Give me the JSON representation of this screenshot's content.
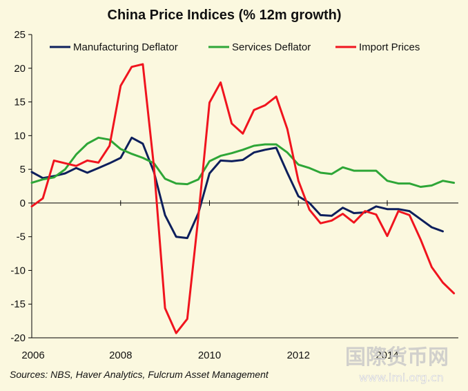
{
  "chart_data": {
    "type": "line",
    "title": "China Price Indices (% 12m growth)",
    "xlabel": "",
    "ylabel": "",
    "xlim": [
      2006,
      2015.6
    ],
    "ylim": [
      -20,
      25
    ],
    "y_ticks": [
      25,
      20,
      15,
      10,
      5,
      0,
      -5,
      -10,
      -15,
      -20
    ],
    "x_tick_labels": [
      "2006",
      "2008",
      "2010",
      "2012",
      "2014"
    ],
    "grid": false,
    "legend_position": "top",
    "series": [
      {
        "name": "Manufacturing Deflator",
        "color": "#0D1F5C",
        "x": [
          2006.0,
          2006.25,
          2006.5,
          2006.75,
          2007.0,
          2007.25,
          2007.5,
          2007.75,
          2008.0,
          2008.25,
          2008.5,
          2008.75,
          2009.0,
          2009.25,
          2009.5,
          2009.75,
          2010.0,
          2010.25,
          2010.5,
          2010.75,
          2011.0,
          2011.25,
          2011.5,
          2011.75,
          2012.0,
          2012.25,
          2012.5,
          2012.75,
          2013.0,
          2013.25,
          2013.5,
          2013.75,
          2014.0,
          2014.25,
          2014.5,
          2014.75,
          2015.0,
          2015.25
        ],
        "y": [
          4.6,
          3.7,
          4.0,
          4.4,
          5.2,
          4.5,
          5.2,
          5.9,
          6.7,
          9.7,
          8.8,
          4.6,
          -1.8,
          -5.0,
          -5.2,
          -1.5,
          4.4,
          6.3,
          6.2,
          6.4,
          7.5,
          7.9,
          8.2,
          4.5,
          1.0,
          0.0,
          -1.8,
          -1.9,
          -0.7,
          -1.5,
          -1.4,
          -0.5,
          -0.9,
          -0.9,
          -1.2,
          -2.4,
          -3.6,
          -4.2
        ]
      },
      {
        "name": "Services Deflator",
        "color": "#2EA637",
        "x": [
          2006.0,
          2006.25,
          2006.5,
          2006.75,
          2007.0,
          2007.25,
          2007.5,
          2007.75,
          2008.0,
          2008.25,
          2008.5,
          2008.75,
          2009.0,
          2009.25,
          2009.5,
          2009.75,
          2010.0,
          2010.25,
          2010.5,
          2010.75,
          2011.0,
          2011.25,
          2011.5,
          2011.75,
          2012.0,
          2012.25,
          2012.5,
          2012.75,
          2013.0,
          2013.25,
          2013.5,
          2013.75,
          2014.0,
          2014.25,
          2014.5,
          2014.75,
          2015.0,
          2015.25,
          2015.5
        ],
        "y": [
          3.0,
          3.5,
          3.8,
          5.0,
          7.2,
          8.8,
          9.7,
          9.4,
          8.0,
          7.3,
          6.7,
          5.9,
          3.6,
          2.9,
          2.8,
          3.5,
          6.2,
          7.0,
          7.4,
          7.9,
          8.5,
          8.7,
          8.7,
          7.5,
          5.7,
          5.2,
          4.5,
          4.3,
          5.3,
          4.8,
          4.8,
          4.8,
          3.3,
          2.9,
          2.9,
          2.4,
          2.6,
          3.3,
          3.0
        ]
      },
      {
        "name": "Import Prices",
        "color": "#F0141E",
        "x": [
          2006.0,
          2006.25,
          2006.5,
          2006.75,
          2007.0,
          2007.25,
          2007.5,
          2007.75,
          2008.0,
          2008.25,
          2008.5,
          2008.75,
          2009.0,
          2009.25,
          2009.5,
          2009.75,
          2010.0,
          2010.25,
          2010.5,
          2010.75,
          2011.0,
          2011.25,
          2011.5,
          2011.75,
          2012.0,
          2012.25,
          2012.5,
          2012.75,
          2013.0,
          2013.25,
          2013.5,
          2013.75,
          2014.0,
          2014.25,
          2014.5,
          2014.75,
          2015.0,
          2015.25,
          2015.5
        ],
        "y": [
          -0.5,
          0.7,
          6.3,
          5.9,
          5.5,
          6.3,
          6.0,
          8.5,
          17.4,
          20.2,
          20.6,
          5.4,
          -15.6,
          -19.3,
          -17.2,
          -2.0,
          14.9,
          17.9,
          11.8,
          10.3,
          13.8,
          14.5,
          15.8,
          11.0,
          3.3,
          -1.0,
          -3.0,
          -2.6,
          -1.6,
          -2.9,
          -1.2,
          -1.7,
          -4.9,
          -1.2,
          -1.8,
          -5.4,
          -9.5,
          -11.8,
          -13.4
        ]
      }
    ],
    "source": "Sources:  NBS, Haver Analytics, Fulcrum Asset Management"
  },
  "watermark": {
    "chinese_text": "国際货币网",
    "url_text": "www.imi.org.cn"
  }
}
